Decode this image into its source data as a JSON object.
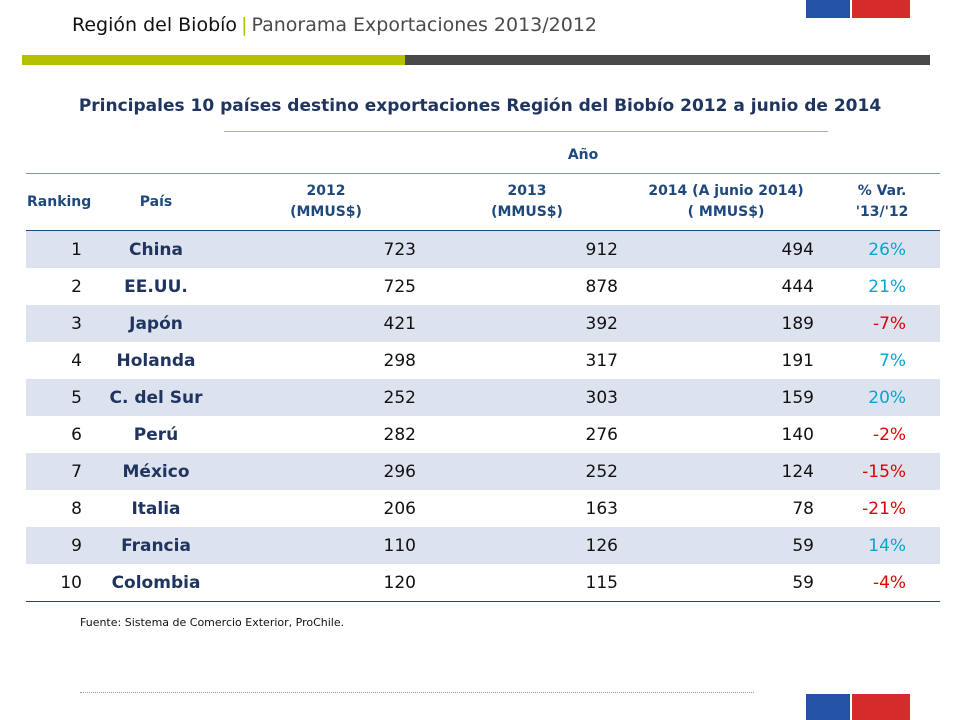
{
  "header": {
    "region": "Región del Biobío",
    "separator": "|",
    "subtitle": "Panorama Exportaciones 2013/2012"
  },
  "title": "Principales 10 países destino exportaciones Región del Biobío 2012  a junio de 2014",
  "table": {
    "group_header": "Año",
    "columns": {
      "ranking": "Ranking",
      "country": "País",
      "y2012_line1": "2012",
      "y2012_line2": "(MMUS$)",
      "y2013_line1": "2013",
      "y2013_line2": "(MMUS$)",
      "y2014_line1": "2014 (A junio 2014)",
      "y2014_line2": "( MMUS$)",
      "var_line1": "% Var.",
      "var_line2": "'13/'12"
    },
    "rows": [
      {
        "rank": "1",
        "country": "China",
        "v2012": "723",
        "v2013": "912",
        "v2014": "494",
        "var": "26%"
      },
      {
        "rank": "2",
        "country": "EE.UU.",
        "v2012": "725",
        "v2013": "878",
        "v2014": "444",
        "var": "21%"
      },
      {
        "rank": "3",
        "country": "Japón",
        "v2012": "421",
        "v2013": "392",
        "v2014": "189",
        "var": "-7%"
      },
      {
        "rank": "4",
        "country": "Holanda",
        "v2012": "298",
        "v2013": "317",
        "v2014": "191",
        "var": "7%"
      },
      {
        "rank": "5",
        "country": "C. del Sur",
        "v2012": "252",
        "v2013": "303",
        "v2014": "159",
        "var": "20%"
      },
      {
        "rank": "6",
        "country": "Perú",
        "v2012": "282",
        "v2013": "276",
        "v2014": "140",
        "var": "-2%"
      },
      {
        "rank": "7",
        "country": "México",
        "v2012": "296",
        "v2013": "252",
        "v2014": "124",
        "var": "-15%"
      },
      {
        "rank": "8",
        "country": "Italia",
        "v2012": "206",
        "v2013": "163",
        "v2014": "78",
        "var": "-21%"
      },
      {
        "rank": "9",
        "country": "Francia",
        "v2012": "110",
        "v2013": "126",
        "v2014": "59",
        "var": "14%"
      },
      {
        "rank": "10",
        "country": "Colombia",
        "v2012": "120",
        "v2013": "115",
        "v2014": "59",
        "var": "-4%"
      }
    ]
  },
  "source": "Fuente: Sistema de Comercio Exterior, ProChile.",
  "colors": {
    "positive": "#00a6d6",
    "negative": "#e00000",
    "accent_green": "#b5c100",
    "dark_gray": "#4a4a4a",
    "flag_blue": "#2453a6",
    "flag_red": "#d52b2b"
  }
}
